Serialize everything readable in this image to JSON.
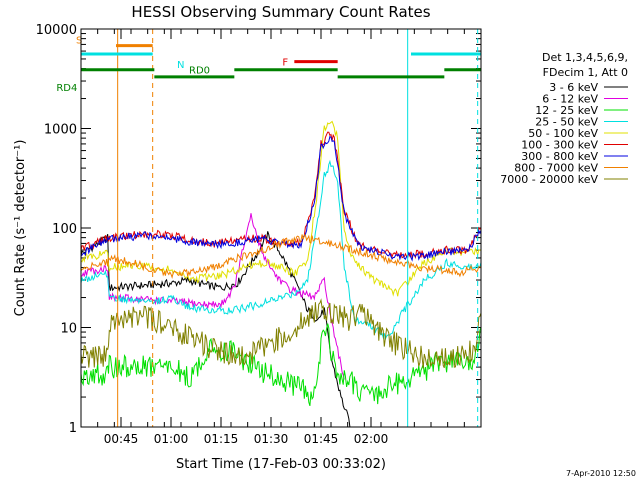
{
  "chart_data": {
    "type": "line",
    "title": "HESSI Observing Summary Count Rates",
    "xlabel": "Start Time (17-Feb-03 00:33:02)",
    "ylabel": "Count Rate (s⁻¹ detector⁻¹)",
    "ylim": [
      1,
      10000
    ],
    "yscale": "log",
    "xlim_minutes_after_0033": [
      0,
      120
    ],
    "x_ticks": [
      {
        "label": "00:45",
        "t": 12
      },
      {
        "label": "01:00",
        "t": 27
      },
      {
        "label": "01:15",
        "t": 42
      },
      {
        "label": "01:30",
        "t": 57
      },
      {
        "label": "01:45",
        "t": 72
      },
      {
        "label": "02:00",
        "t": 87
      }
    ],
    "y_ticks": [
      {
        "label": "1",
        "v": 1
      },
      {
        "label": "10",
        "v": 10
      },
      {
        "label": "100",
        "v": 100
      },
      {
        "label": "1000",
        "v": 1000
      },
      {
        "label": "10000",
        "v": 10000
      }
    ],
    "legend_header": [
      "Det 1,3,4,5,6,9,",
      "FDecim 1, Att 0"
    ],
    "legend_position": "right",
    "series": [
      {
        "name": "3 - 6 keV",
        "color": "#000000",
        "t": [
          0,
          8,
          8.5,
          22,
          28,
          32,
          37,
          42,
          47,
          52,
          56,
          60,
          64,
          68,
          71,
          73,
          75,
          78,
          81
        ],
        "values": [
          55,
          80,
          25,
          27,
          28,
          30,
          27,
          25,
          28,
          50,
          85,
          55,
          30,
          15,
          12,
          15,
          5,
          2,
          1
        ]
      },
      {
        "name": "6 - 12 keV",
        "color": "#e000e0",
        "t": [
          0,
          8,
          8.5,
          22,
          30,
          37,
          42,
          46,
          49,
          51,
          54,
          58,
          62,
          66,
          70,
          73,
          76,
          79
        ],
        "values": [
          35,
          40,
          20,
          19,
          18,
          17,
          17,
          25,
          70,
          130,
          60,
          35,
          25,
          22,
          20,
          30,
          8,
          3
        ]
      },
      {
        "name": "12 - 25 keV",
        "color": "#00e000",
        "t": [
          0,
          8,
          8.5,
          15,
          22,
          27,
          33,
          38,
          44,
          50,
          55,
          60,
          65,
          70,
          73,
          77,
          80,
          86,
          92,
          97,
          105,
          112,
          118,
          120
        ],
        "values": [
          3.5,
          3.2,
          4,
          4,
          4,
          4,
          3,
          6,
          6,
          4.5,
          3.5,
          3,
          2.5,
          2,
          12,
          3,
          3,
          2,
          2.5,
          3,
          4,
          5,
          4,
          10
        ]
      },
      {
        "name": "25 - 50 keV",
        "color": "#00e0e0",
        "t": [
          0,
          8,
          8.5,
          15,
          22,
          27,
          32,
          38,
          44,
          50,
          56,
          60,
          64,
          68,
          71,
          73,
          75,
          77,
          79,
          82,
          88,
          92,
          97,
          103,
          110,
          116,
          120
        ],
        "values": [
          30,
          35,
          20,
          19,
          18,
          20,
          16,
          15,
          15,
          16,
          18,
          20,
          22,
          30,
          120,
          350,
          450,
          300,
          40,
          12,
          10,
          8,
          15,
          30,
          45,
          40,
          45
        ]
      },
      {
        "name": "50 - 100 keV",
        "color": "#e0e000",
        "t": [
          0,
          8,
          8.5,
          15,
          22,
          27,
          33,
          38,
          44,
          50,
          56,
          60,
          64,
          68,
          71,
          73,
          75,
          77,
          79,
          82,
          88,
          95,
          103,
          110,
          116,
          120
        ],
        "values": [
          50,
          55,
          40,
          42,
          40,
          38,
          30,
          32,
          35,
          42,
          45,
          40,
          35,
          45,
          250,
          1000,
          1200,
          800,
          90,
          45,
          30,
          22,
          45,
          60,
          55,
          60
        ]
      },
      {
        "name": "100 - 300 keV",
        "color": "#e00000",
        "t": [
          0,
          8,
          8.5,
          15,
          22,
          27,
          33,
          40,
          47,
          54,
          60,
          66,
          70,
          72,
          74,
          76,
          79,
          83,
          88,
          95,
          103,
          110,
          116,
          120
        ],
        "values": [
          60,
          80,
          80,
          85,
          88,
          85,
          75,
          70,
          75,
          80,
          70,
          70,
          200,
          700,
          850,
          800,
          150,
          70,
          60,
          55,
          55,
          60,
          60,
          100
        ]
      },
      {
        "name": "300 - 800 keV",
        "color": "#0000e0",
        "t": [
          0,
          8,
          8.5,
          15,
          22,
          27,
          33,
          40,
          47,
          54,
          60,
          66,
          70,
          72,
          74,
          76,
          79,
          83,
          88,
          95,
          103,
          110,
          116,
          120
        ],
        "values": [
          55,
          75,
          78,
          82,
          85,
          80,
          72,
          68,
          72,
          78,
          68,
          68,
          180,
          650,
          780,
          750,
          140,
          68,
          58,
          52,
          52,
          58,
          58,
          95
        ]
      },
      {
        "name": "800 - 7000 keV",
        "color": "#f08000",
        "t": [
          0,
          8,
          8.5,
          15,
          22,
          27,
          33,
          40,
          47,
          54,
          60,
          66,
          72,
          78,
          84,
          90,
          96,
          102,
          108,
          114,
          120
        ],
        "values": [
          38,
          45,
          50,
          45,
          38,
          35,
          35,
          40,
          50,
          60,
          70,
          80,
          75,
          65,
          58,
          50,
          45,
          40,
          38,
          36,
          40
        ]
      },
      {
        "name": "7000 - 20000 keV",
        "color": "#808000",
        "t": [
          0,
          8,
          8.5,
          15,
          22,
          27,
          33,
          40,
          47,
          54,
          60,
          66,
          72,
          76,
          80,
          84,
          88,
          94,
          100,
          106,
          112,
          118,
          120
        ],
        "values": [
          5,
          5,
          10,
          13,
          12,
          10,
          8,
          6,
          5,
          6,
          8,
          11,
          15,
          14,
          12,
          14,
          10,
          7,
          5.5,
          4.5,
          5,
          6,
          14
        ]
      }
    ],
    "annotations": [
      {
        "label": "S",
        "color": "#f08000",
        "t_start": 10.5,
        "t_end": 21.5,
        "level": 6800
      },
      {
        "label": "N",
        "color": "#00e0e0",
        "t_start": 0,
        "t_end": 21.5,
        "level": 5600
      },
      {
        "label": "N",
        "color": "#00e0e0",
        "t_start": 99,
        "t_end": 120,
        "level": 5600
      },
      {
        "label": "F",
        "color": "#e00000",
        "t_start": 64,
        "t_end": 77,
        "level": 4700
      },
      {
        "label": "RD0",
        "color": "#008000",
        "t_start": 0,
        "t_end": 22,
        "level": 3900
      },
      {
        "label": "RD4",
        "color": "#008000",
        "t_start": 22,
        "t_end": 46,
        "level": 3300
      },
      {
        "label": "",
        "color": "#008000",
        "t_start": 46,
        "t_end": 77,
        "level": 3900
      },
      {
        "label": "",
        "color": "#008000",
        "t_start": 77,
        "t_end": 109,
        "level": 3300
      },
      {
        "label": "",
        "color": "#008000",
        "t_start": 109,
        "t_end": 120,
        "level": 3900
      }
    ],
    "vertical_markers": [
      {
        "t": 0,
        "color": "#00e0e0",
        "dashed": false
      },
      {
        "t": 11,
        "color": "#f08000",
        "dashed": false
      },
      {
        "t": 21.5,
        "color": "#f08000",
        "dashed": true
      },
      {
        "t": 98,
        "color": "#00e0e0",
        "dashed": false
      },
      {
        "t": 119,
        "color": "#00e0e0",
        "dashed": true
      }
    ],
    "footer_stamp": "7-Apr-2010 12:50"
  }
}
